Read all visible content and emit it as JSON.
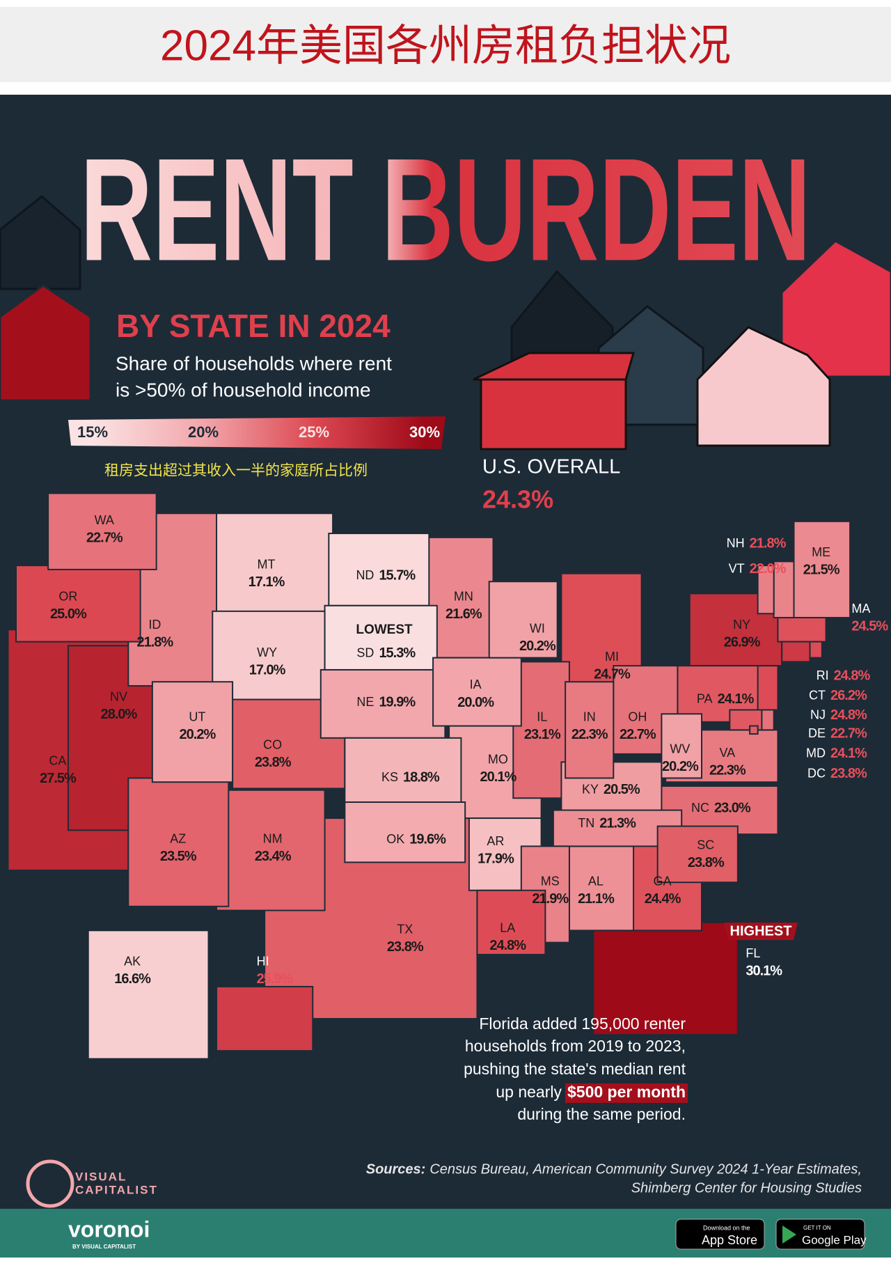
{
  "header": {
    "title": "2024年美国各州房租负担状况"
  },
  "poster": {
    "title": "RENT BURDEN",
    "subtitle": "BY STATE IN 2024",
    "description": [
      "Share of households where rent",
      "is >50% of household income"
    ],
    "legend": {
      "ticks": [
        {
          "value": 15,
          "label": "15%"
        },
        {
          "value": 20,
          "label": "20%"
        },
        {
          "value": 25,
          "label": "25%"
        },
        {
          "value": 30,
          "label": "30%"
        }
      ],
      "colors": [
        "#fbe3e3",
        "#f2a6ab",
        "#dc4852",
        "#9e0a18"
      ]
    },
    "legend_note": "租房支出超过其收入一半的家庭所占比例",
    "us_overall": {
      "label": "U.S. OVERALL",
      "value": 24.3,
      "value_label": "24.3%"
    },
    "lowest": "LOWEST",
    "highest": "HIGHEST",
    "states": [
      {
        "abbr": "WA",
        "value": 22.7,
        "value_label": "22.7%"
      },
      {
        "abbr": "OR",
        "value": 25.0,
        "value_label": "25.0%"
      },
      {
        "abbr": "CA",
        "value": 27.5,
        "value_label": "27.5%"
      },
      {
        "abbr": "NV",
        "value": 28.0,
        "value_label": "28.0%"
      },
      {
        "abbr": "ID",
        "value": 21.8,
        "value_label": "21.8%"
      },
      {
        "abbr": "MT",
        "value": 17.1,
        "value_label": "17.1%"
      },
      {
        "abbr": "WY",
        "value": 17.0,
        "value_label": "17.0%"
      },
      {
        "abbr": "UT",
        "value": 20.2,
        "value_label": "20.2%"
      },
      {
        "abbr": "CO",
        "value": 23.8,
        "value_label": "23.8%"
      },
      {
        "abbr": "AZ",
        "value": 23.5,
        "value_label": "23.5%"
      },
      {
        "abbr": "NM",
        "value": 23.4,
        "value_label": "23.4%"
      },
      {
        "abbr": "ND",
        "value": 15.7,
        "value_label": "15.7%"
      },
      {
        "abbr": "SD",
        "value": 15.3,
        "value_label": "15.3%"
      },
      {
        "abbr": "NE",
        "value": 19.9,
        "value_label": "19.9%"
      },
      {
        "abbr": "KS",
        "value": 18.8,
        "value_label": "18.8%"
      },
      {
        "abbr": "OK",
        "value": 19.6,
        "value_label": "19.6%"
      },
      {
        "abbr": "TX",
        "value": 23.8,
        "value_label": "23.8%"
      },
      {
        "abbr": "MN",
        "value": 21.6,
        "value_label": "21.6%"
      },
      {
        "abbr": "IA",
        "value": 20.0,
        "value_label": "20.0%"
      },
      {
        "abbr": "MO",
        "value": 20.1,
        "value_label": "20.1%"
      },
      {
        "abbr": "AR",
        "value": 17.9,
        "value_label": "17.9%"
      },
      {
        "abbr": "LA",
        "value": 24.8,
        "value_label": "24.8%"
      },
      {
        "abbr": "WI",
        "value": 20.2,
        "value_label": "20.2%"
      },
      {
        "abbr": "IL",
        "value": 23.1,
        "value_label": "23.1%"
      },
      {
        "abbr": "MI",
        "value": 24.7,
        "value_label": "24.7%"
      },
      {
        "abbr": "IN",
        "value": 22.3,
        "value_label": "22.3%"
      },
      {
        "abbr": "OH",
        "value": 22.7,
        "value_label": "22.7%"
      },
      {
        "abbr": "KY",
        "value": 20.5,
        "value_label": "20.5%"
      },
      {
        "abbr": "TN",
        "value": 21.3,
        "value_label": "21.3%"
      },
      {
        "abbr": "MS",
        "value": 21.9,
        "value_label": "21.9%"
      },
      {
        "abbr": "AL",
        "value": 21.1,
        "value_label": "21.1%"
      },
      {
        "abbr": "GA",
        "value": 24.4,
        "value_label": "24.4%"
      },
      {
        "abbr": "FL",
        "value": 30.1,
        "value_label": "30.1%"
      },
      {
        "abbr": "SC",
        "value": 23.8,
        "value_label": "23.8%"
      },
      {
        "abbr": "NC",
        "value": 23.0,
        "value_label": "23.0%"
      },
      {
        "abbr": "VA",
        "value": 22.3,
        "value_label": "22.3%"
      },
      {
        "abbr": "WV",
        "value": 20.2,
        "value_label": "20.2%"
      },
      {
        "abbr": "PA",
        "value": 24.1,
        "value_label": "24.1%"
      },
      {
        "abbr": "NY",
        "value": 26.9,
        "value_label": "26.9%"
      },
      {
        "abbr": "ME",
        "value": 21.5,
        "value_label": "21.5%"
      },
      {
        "abbr": "NH",
        "value": 21.8,
        "value_label": "21.8%"
      },
      {
        "abbr": "VT",
        "value": 22.0,
        "value_label": "22.0%"
      },
      {
        "abbr": "MA",
        "value": 24.5,
        "value_label": "24.5%"
      },
      {
        "abbr": "RI",
        "value": 24.8,
        "value_label": "24.8%"
      },
      {
        "abbr": "CT",
        "value": 26.2,
        "value_label": "26.2%"
      },
      {
        "abbr": "NJ",
        "value": 24.8,
        "value_label": "24.8%"
      },
      {
        "abbr": "DE",
        "value": 22.7,
        "value_label": "22.7%"
      },
      {
        "abbr": "MD",
        "value": 24.1,
        "value_label": "24.1%"
      },
      {
        "abbr": "DC",
        "value": 23.8,
        "value_label": "23.8%"
      },
      {
        "abbr": "AK",
        "value": 16.6,
        "value_label": "16.6%"
      },
      {
        "abbr": "HI",
        "value": 25.9,
        "value_label": "25.9%"
      }
    ],
    "note": {
      "lines": [
        "Florida added 195,000 renter",
        "households from 2019 to 2023,",
        "pushing the state's median rent"
      ],
      "prefix": "up nearly",
      "highlight": "$500 per month",
      "end": "during the same period."
    },
    "sources": {
      "label": "Sources:",
      "lines": [
        "Census Bureau, American Community Survey 2024 1-Year Estimates,",
        "Shimberg Center for Housing Studies"
      ]
    },
    "logo": [
      "VISUAL",
      "CAPITALIST"
    ]
  },
  "footer": {
    "brand": "voronoi",
    "brand_sub": "BY VISUAL CAPITALIST",
    "app_store": [
      "Download on the",
      "App Store"
    ],
    "google_play": [
      "GET IT ON",
      "Google Play"
    ]
  }
}
